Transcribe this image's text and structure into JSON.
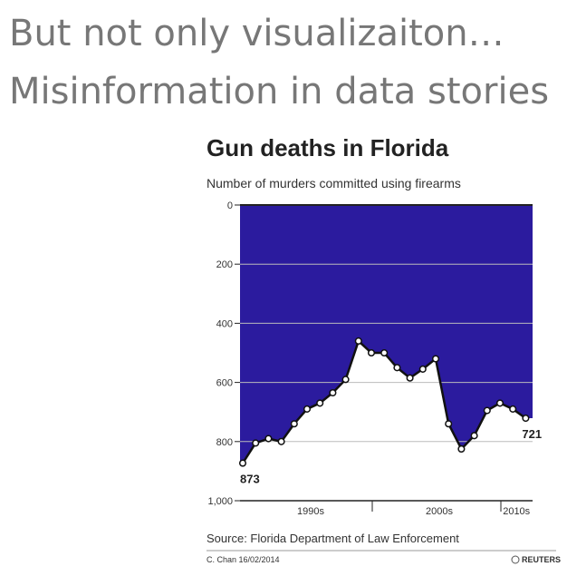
{
  "slide": {
    "heading": [
      "But not only visualizaiton…",
      "Misinformation in data stories"
    ]
  },
  "chart_data": {
    "type": "area-line",
    "title": "Gun deaths in Florida",
    "subtitle": "Number of murders committed using firearms",
    "categories": [
      null,
      null,
      null,
      null,
      null,
      "1990s",
      null,
      null,
      null,
      null,
      null,
      null,
      null,
      null,
      null,
      "2000s",
      null,
      null,
      null,
      null,
      null,
      "2010s",
      null
    ],
    "values": [
      873,
      805,
      790,
      800,
      740,
      690,
      670,
      635,
      590,
      460,
      500,
      500,
      550,
      585,
      555,
      520,
      740,
      825,
      780,
      695,
      670,
      690,
      721
    ],
    "color": "#2b1b9e",
    "ylim": [
      0,
      1000
    ],
    "inverted": true,
    "yticks": [
      0,
      200,
      400,
      600,
      800,
      {
        "value": 1000,
        "label": "1,000"
      }
    ],
    "grid": true,
    "source": "Source: Florida Department of Law Enforcement",
    "credit": "C. Chan 16/02/2014",
    "publisher": "REUTERS"
  }
}
